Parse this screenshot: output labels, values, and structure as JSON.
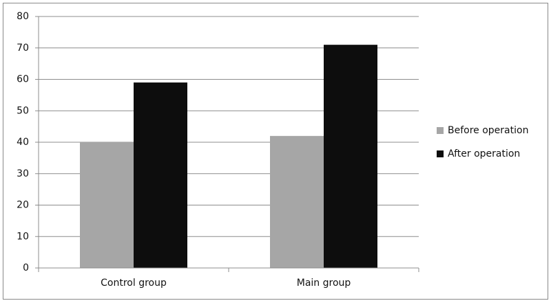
{
  "chart_data": {
    "type": "bar",
    "categories": [
      "Control group",
      "Main group"
    ],
    "series": [
      {
        "name": "Before operation",
        "color": "#a6a6a6",
        "values": [
          40,
          42
        ]
      },
      {
        "name": "After operation",
        "color": "#0d0d0d",
        "values": [
          59,
          71
        ]
      }
    ],
    "ylim": [
      0,
      80
    ],
    "yticks": [
      0,
      10,
      20,
      30,
      40,
      50,
      60,
      70,
      80
    ],
    "grid": true,
    "legend": "right"
  }
}
